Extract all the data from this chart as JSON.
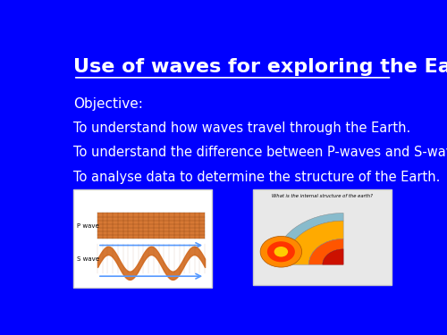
{
  "background_color": "#0000FF",
  "title": "Use of waves for exploring the Earth",
  "title_color": "#FFFFFF",
  "title_fontsize": 16,
  "objective_label": "Objective:",
  "objectives": [
    "To understand how waves travel through the Earth.",
    "To understand the difference between P-waves and S-waves.",
    "To analyse data to determine the structure of the Earth."
  ],
  "text_color": "#FFFFFF",
  "text_fontsize": 11
}
